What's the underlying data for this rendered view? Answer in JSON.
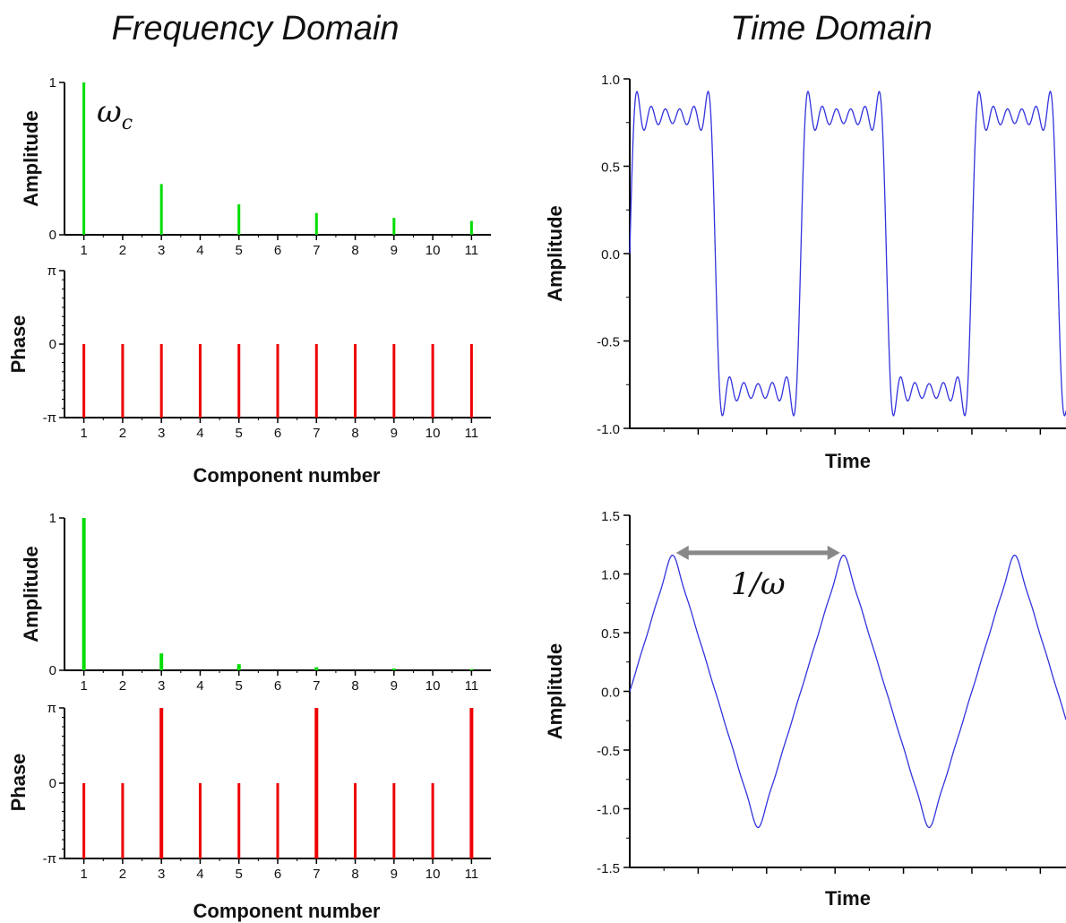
{
  "titles": {
    "frequency_domain": "Frequency Domain",
    "time_domain": "Time Domain"
  },
  "colors": {
    "amplitude_bars": "#00dd00",
    "phase_bars": "#ee0000",
    "waveform": "#3333dd",
    "period_arrow": "#888888",
    "axes": "#000000"
  },
  "chart_data": [
    {
      "id": "square_amplitude",
      "type": "bar",
      "ylabel": "Amplitude",
      "ytick_labels": [
        "0",
        "1"
      ],
      "ylim": [
        0,
        1
      ],
      "xlim": [
        0.5,
        11.5
      ],
      "x_tick_labels": [
        "1",
        "2",
        "3",
        "4",
        "5",
        "6",
        "7",
        "8",
        "9",
        "10",
        "11"
      ],
      "x": [
        1,
        3,
        5,
        7,
        9,
        11
      ],
      "values": [
        1.0,
        0.333,
        0.2,
        0.143,
        0.111,
        0.091
      ],
      "annotation": {
        "main": "ω",
        "sub": "c"
      }
    },
    {
      "id": "square_phase",
      "type": "bar",
      "ylabel": "Phase",
      "xlabel": "Component number",
      "ytick_labels": [
        "-π",
        "0",
        "π"
      ],
      "ylim": [
        -3.1416,
        3.1416
      ],
      "xlim": [
        0.5,
        11.5
      ],
      "x_tick_labels": [
        "1",
        "2",
        "3",
        "4",
        "5",
        "6",
        "7",
        "8",
        "9",
        "10",
        "11"
      ],
      "x": [
        1,
        2,
        3,
        4,
        5,
        6,
        7,
        8,
        9,
        10,
        11
      ],
      "values": [
        0,
        0,
        0,
        0,
        0,
        0,
        0,
        0,
        0,
        0,
        0
      ],
      "bar_bottom": -3.1416
    },
    {
      "id": "square_time",
      "type": "line",
      "ylabel": "Amplitude",
      "xlabel": "Time",
      "ytick_labels": [
        "-1.0",
        "-0.5",
        "0.0",
        "0.5",
        "1.0"
      ],
      "ylim": [
        -1.0,
        1.0
      ],
      "yticks": [
        -1.0,
        -0.5,
        0.0,
        0.5,
        1.0
      ],
      "xlim": [
        0,
        2.55
      ],
      "series": [
        {
          "fourier": "square",
          "amplitude": 0.7854,
          "harmonics": [
            1,
            3,
            5,
            7,
            9,
            11
          ],
          "period": 1
        }
      ]
    },
    {
      "id": "triangle_amplitude",
      "type": "bar",
      "ylabel": "Amplitude",
      "ytick_labels": [
        "0",
        "1"
      ],
      "ylim": [
        0,
        1
      ],
      "xlim": [
        0.5,
        11.5
      ],
      "x_tick_labels": [
        "1",
        "2",
        "3",
        "4",
        "5",
        "6",
        "7",
        "8",
        "9",
        "10",
        "11"
      ],
      "x": [
        1,
        3,
        5,
        7,
        9,
        11
      ],
      "values": [
        1.0,
        0.111,
        0.04,
        0.02,
        0.012,
        0.008
      ]
    },
    {
      "id": "triangle_phase",
      "type": "bar",
      "ylabel": "Phase",
      "xlabel": "Component number",
      "ytick_labels": [
        "-π",
        "0",
        "π"
      ],
      "ylim": [
        -3.1416,
        3.1416
      ],
      "xlim": [
        0.5,
        11.5
      ],
      "x_tick_labels": [
        "1",
        "2",
        "3",
        "4",
        "5",
        "6",
        "7",
        "8",
        "9",
        "10",
        "11"
      ],
      "x": [
        1,
        2,
        3,
        4,
        5,
        6,
        7,
        8,
        9,
        10,
        11
      ],
      "values": [
        0,
        0,
        3.1416,
        0,
        0,
        0,
        3.1416,
        0,
        0,
        0,
        3.1416
      ],
      "bar_bottom": -3.1416
    },
    {
      "id": "triangle_time",
      "type": "line",
      "ylabel": "Amplitude",
      "xlabel": "Time",
      "ytick_labels": [
        "-1.5",
        "-1.0",
        "-0.5",
        "0.0",
        "0.5",
        "1.0",
        "1.5"
      ],
      "ylim": [
        -1.5,
        1.5
      ],
      "yticks": [
        -1.5,
        -1.0,
        -0.5,
        0.0,
        0.5,
        1.0,
        1.5
      ],
      "xlim": [
        0,
        2.55
      ],
      "series": [
        {
          "fourier": "triangle",
          "amplitude": 1.2,
          "harmonics": [
            1,
            3,
            5,
            7,
            9,
            11
          ],
          "period": 1
        }
      ],
      "annotation": {
        "text": "1/ω",
        "arrow_from_x": 0.25,
        "arrow_to_x": 1.25,
        "arrow_y": 1.18
      }
    }
  ]
}
